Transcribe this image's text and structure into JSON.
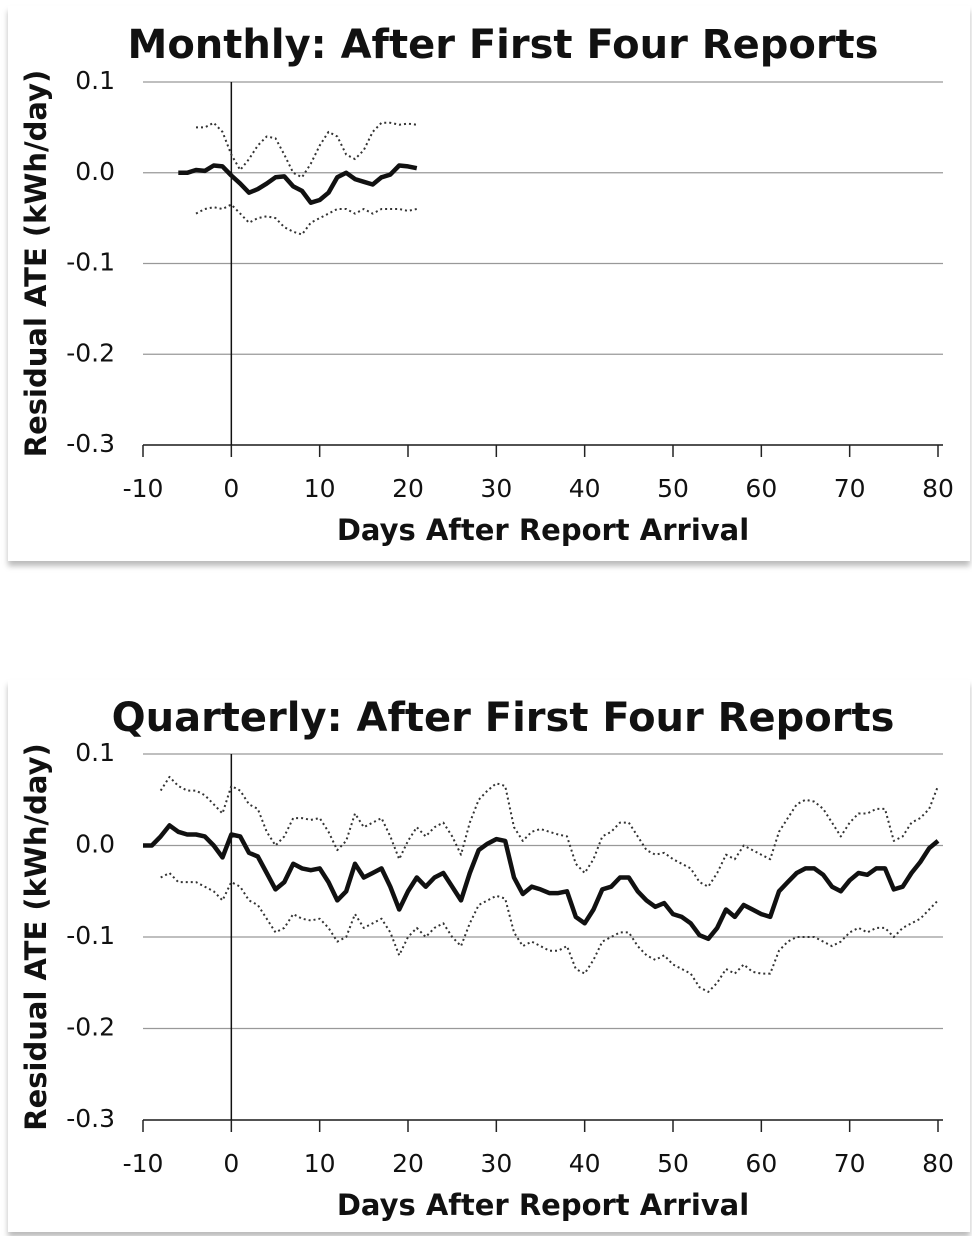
{
  "chart_data": [
    {
      "type": "line",
      "title": "Monthly: After First Four Reports",
      "xlabel": "Days After Report Arrival",
      "ylabel": "Residual ATE  (kWh/day)",
      "xlim": [
        -10,
        80
      ],
      "xticks": [
        -10,
        0,
        10,
        20,
        30,
        40,
        50,
        60,
        70,
        80
      ],
      "ylim": [
        -0.3,
        0.1
      ],
      "yticks": [
        -0.3,
        -0.2,
        -0.1,
        {
          "value": 0,
          "label": "0.0"
        },
        0.1
      ],
      "grid": true,
      "x": [
        -6,
        -5,
        -4,
        -3,
        -2,
        -1,
        0,
        1,
        2,
        3,
        4,
        5,
        6,
        7,
        8,
        9,
        10,
        11,
        12,
        13,
        14,
        15,
        16,
        17,
        18,
        19,
        20,
        21
      ],
      "series": [
        {
          "color": "#111111",
          "style": "solid",
          "values": [
            0,
            0,
            0.003,
            0.002,
            0.008,
            0.007,
            -0.003,
            -0.012,
            -0.022,
            -0.018,
            -0.012,
            -0.005,
            -0.004,
            -0.015,
            -0.02,
            -0.033,
            -0.03,
            -0.022,
            -0.005,
            0.0,
            -0.007,
            -0.01,
            -0.013,
            -0.005,
            -0.002,
            0.008,
            0.007,
            0.005
          ]
        },
        {
          "color": "#333333",
          "style": "dotted",
          "values": [
            null,
            null,
            0.05,
            0.05,
            0.055,
            0.045,
            0.02,
            0.003,
            0.015,
            0.03,
            0.04,
            0.038,
            0.02,
            0.0,
            -0.005,
            0.01,
            0.03,
            0.045,
            0.04,
            0.02,
            0.015,
            0.025,
            0.045,
            0.055,
            0.055,
            0.053,
            0.054,
            0.053
          ]
        },
        {
          "color": "#333333",
          "style": "dotted",
          "values": [
            null,
            null,
            -0.045,
            -0.04,
            -0.038,
            -0.04,
            -0.035,
            -0.045,
            -0.055,
            -0.05,
            -0.048,
            -0.05,
            -0.06,
            -0.065,
            -0.068,
            -0.055,
            -0.05,
            -0.045,
            -0.04,
            -0.04,
            -0.045,
            -0.04,
            -0.045,
            -0.04,
            -0.04,
            -0.04,
            -0.042,
            -0.04
          ]
        }
      ]
    },
    {
      "type": "line",
      "title": "Quarterly: After First Four Reports",
      "xlabel": "Days After Report Arrival",
      "ylabel": "Residual ATE  (kWh/day)",
      "xlim": [
        -10,
        80
      ],
      "xticks": [
        -10,
        0,
        10,
        20,
        30,
        40,
        50,
        60,
        70,
        80
      ],
      "ylim": [
        -0.3,
        0.1
      ],
      "yticks": [
        -0.3,
        -0.2,
        -0.1,
        {
          "value": 0,
          "label": "0.0"
        },
        0.1
      ],
      "grid": true,
      "x": [
        -10,
        -9,
        -8,
        -7,
        -6,
        -5,
        -4,
        -3,
        -2,
        -1,
        0,
        1,
        2,
        3,
        4,
        5,
        6,
        7,
        8,
        9,
        10,
        11,
        12,
        13,
        14,
        15,
        16,
        17,
        18,
        19,
        20,
        21,
        22,
        23,
        24,
        25,
        26,
        27,
        28,
        29,
        30,
        31,
        32,
        33,
        34,
        35,
        36,
        37,
        38,
        39,
        40,
        41,
        42,
        43,
        44,
        45,
        46,
        47,
        48,
        49,
        50,
        51,
        52,
        53,
        54,
        55,
        56,
        57,
        58,
        59,
        60,
        61,
        62,
        63,
        64,
        65,
        66,
        67,
        68,
        69,
        70,
        71,
        72,
        73,
        74,
        75,
        76,
        77,
        78,
        79,
        80
      ],
      "series": [
        {
          "color": "#111111",
          "style": "solid",
          "values": [
            0,
            0,
            0.01,
            0.022,
            0.015,
            0.012,
            0.012,
            0.01,
            0.0,
            -0.013,
            0.012,
            0.01,
            -0.008,
            -0.012,
            -0.03,
            -0.048,
            -0.04,
            -0.02,
            -0.025,
            -0.027,
            -0.025,
            -0.04,
            -0.06,
            -0.05,
            -0.02,
            -0.035,
            -0.03,
            -0.025,
            -0.045,
            -0.07,
            -0.05,
            -0.035,
            -0.045,
            -0.035,
            -0.03,
            -0.045,
            -0.06,
            -0.03,
            -0.005,
            0.002,
            0.007,
            0.005,
            -0.035,
            -0.053,
            -0.045,
            -0.048,
            -0.052,
            -0.052,
            -0.05,
            -0.078,
            -0.085,
            -0.07,
            -0.048,
            -0.045,
            -0.035,
            -0.035,
            -0.05,
            -0.06,
            -0.067,
            -0.063,
            -0.075,
            -0.078,
            -0.085,
            -0.098,
            -0.102,
            -0.09,
            -0.07,
            -0.078,
            -0.065,
            -0.07,
            -0.075,
            -0.078,
            -0.05,
            -0.04,
            -0.03,
            -0.025,
            -0.025,
            -0.032,
            -0.045,
            -0.05,
            -0.038,
            -0.03,
            -0.032,
            -0.025,
            -0.025,
            -0.048,
            -0.045,
            -0.03,
            -0.018,
            -0.003,
            0.005
          ]
        },
        {
          "color": "#333333",
          "style": "dotted",
          "values": [
            null,
            null,
            0.06,
            0.075,
            0.065,
            0.06,
            0.06,
            0.055,
            0.045,
            0.035,
            0.065,
            0.06,
            0.045,
            0.04,
            0.015,
            0.0,
            0.01,
            0.03,
            0.03,
            0.028,
            0.03,
            0.015,
            -0.005,
            0.005,
            0.035,
            0.02,
            0.025,
            0.03,
            0.01,
            -0.015,
            0.005,
            0.02,
            0.01,
            0.02,
            0.025,
            0.01,
            -0.01,
            0.025,
            0.05,
            0.06,
            0.068,
            0.065,
            0.02,
            0.005,
            0.015,
            0.018,
            0.015,
            0.012,
            0.01,
            -0.02,
            -0.03,
            -0.015,
            0.01,
            0.015,
            0.025,
            0.025,
            0.01,
            -0.005,
            -0.01,
            -0.008,
            -0.015,
            -0.02,
            -0.025,
            -0.04,
            -0.045,
            -0.03,
            -0.01,
            -0.015,
            0.0,
            -0.005,
            -0.01,
            -0.015,
            0.015,
            0.03,
            0.045,
            0.05,
            0.048,
            0.04,
            0.025,
            0.01,
            0.025,
            0.035,
            0.035,
            0.04,
            0.04,
            0.005,
            0.01,
            0.025,
            0.03,
            0.04,
            0.065
          ]
        },
        {
          "color": "#333333",
          "style": "dotted",
          "values": [
            null,
            null,
            -0.035,
            -0.03,
            -0.04,
            -0.04,
            -0.04,
            -0.045,
            -0.05,
            -0.06,
            -0.04,
            -0.045,
            -0.06,
            -0.065,
            -0.08,
            -0.095,
            -0.09,
            -0.075,
            -0.08,
            -0.082,
            -0.08,
            -0.09,
            -0.105,
            -0.1,
            -0.075,
            -0.09,
            -0.085,
            -0.08,
            -0.095,
            -0.12,
            -0.1,
            -0.09,
            -0.1,
            -0.09,
            -0.085,
            -0.1,
            -0.11,
            -0.085,
            -0.065,
            -0.06,
            -0.055,
            -0.058,
            -0.095,
            -0.11,
            -0.105,
            -0.11,
            -0.115,
            -0.115,
            -0.11,
            -0.135,
            -0.14,
            -0.125,
            -0.105,
            -0.1,
            -0.095,
            -0.095,
            -0.11,
            -0.12,
            -0.125,
            -0.12,
            -0.13,
            -0.135,
            -0.14,
            -0.155,
            -0.16,
            -0.15,
            -0.135,
            -0.14,
            -0.13,
            -0.138,
            -0.14,
            -0.14,
            -0.115,
            -0.105,
            -0.1,
            -0.1,
            -0.1,
            -0.105,
            -0.11,
            -0.105,
            -0.095,
            -0.09,
            -0.095,
            -0.09,
            -0.09,
            -0.1,
            -0.09,
            -0.085,
            -0.08,
            -0.07,
            -0.06
          ]
        }
      ]
    }
  ]
}
